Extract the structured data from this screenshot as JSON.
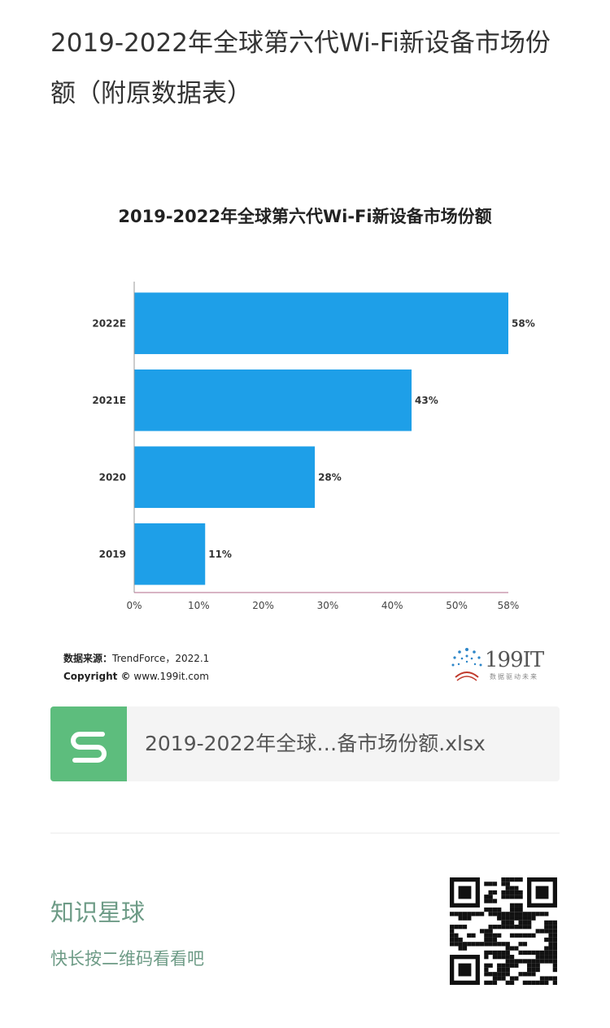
{
  "article": {
    "title": "2019-2022年全球第六代Wi-Fi新设备市场份额（附原数据表）"
  },
  "chart_data": {
    "type": "bar",
    "orientation": "horizontal",
    "title": "2019-2022年全球第六代Wi-Fi新设备市场份额",
    "categories": [
      "2022E",
      "2021E",
      "2020",
      "2019"
    ],
    "values": [
      58,
      43,
      28,
      11
    ],
    "value_labels": [
      "58%",
      "43%",
      "28%",
      "11%"
    ],
    "xlim": [
      0,
      58
    ],
    "xticks": [
      0,
      10,
      20,
      30,
      40,
      50,
      58
    ],
    "xtick_labels": [
      "0%",
      "10%",
      "20%",
      "30%",
      "40%",
      "50%",
      "58%"
    ],
    "bar_color": "#1e9fe8",
    "grid": false
  },
  "source": {
    "label": "数据来源：",
    "text": "TrendForce，2022.1",
    "copyright_label": "Copyright ©",
    "copyright_text": "www.199it.com"
  },
  "brand": {
    "name": "199IT",
    "tagline": "数据驱动未来"
  },
  "attachment": {
    "icon": "spreadsheet-icon",
    "filename": "2019-2022年全球…备市场份额.xlsx",
    "icon_color": "#5dbd7d"
  },
  "footer": {
    "title": "知识星球",
    "subtitle": "快长按二维码看看吧",
    "accent_color": "#6d9b86"
  }
}
